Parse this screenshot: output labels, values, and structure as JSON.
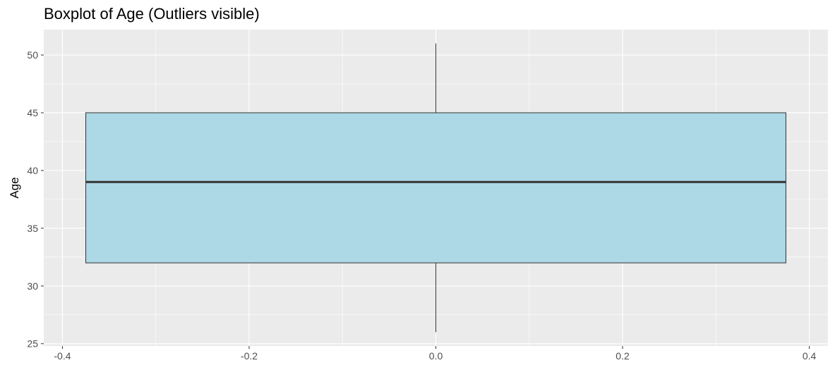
{
  "chart_data": {
    "type": "boxplot",
    "title": "Boxplot of Age (Outliers visible)",
    "xlabel": "",
    "ylabel": "Age",
    "xlim": [
      -0.42,
      0.42
    ],
    "ylim": [
      24.8,
      52.2
    ],
    "x_ticks": [
      -0.4,
      -0.2,
      0.0,
      0.2,
      0.4
    ],
    "x_tick_labels": [
      "-0.4",
      "-0.2",
      "0.0",
      "0.2",
      "0.4"
    ],
    "y_ticks": [
      25,
      30,
      35,
      40,
      45,
      50
    ],
    "y_tick_labels": [
      "25",
      "30",
      "35",
      "40",
      "45",
      "50"
    ],
    "box": {
      "x_center": 0.0,
      "x_left": -0.375,
      "x_right": 0.375,
      "whisker_low": 26,
      "q1": 32,
      "median": 39,
      "q3": 45,
      "whisker_high": 51
    },
    "grid": true,
    "colors": {
      "panel_background": "#ebebeb",
      "grid_line": "#ffffff",
      "box_fill": "#add8e6",
      "box_outline": "#333333",
      "median_line": "#333333",
      "whisker": "#333333"
    }
  }
}
